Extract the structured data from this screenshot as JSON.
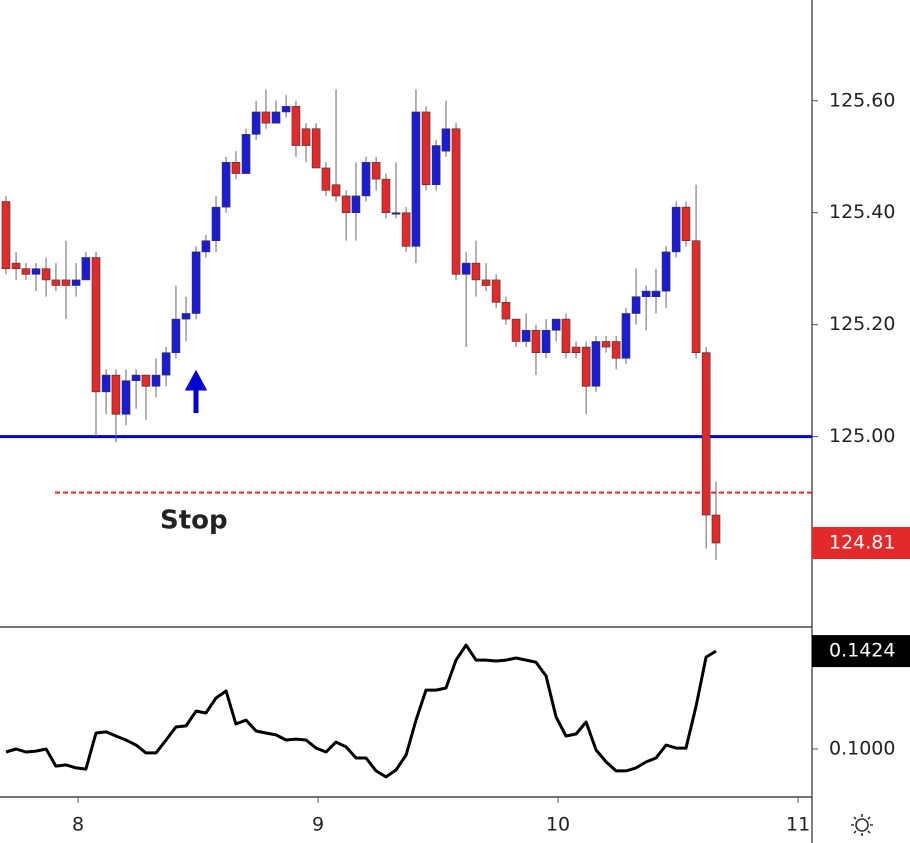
{
  "chart_data": [
    {
      "type": "candlestick",
      "x": [
        7.7,
        7.742,
        7.783,
        7.825,
        7.867,
        7.908,
        7.95,
        7.992,
        8.033,
        8.075,
        8.117,
        8.158,
        8.2,
        8.242,
        8.283,
        8.325,
        8.367,
        8.408,
        8.45,
        8.492,
        8.533,
        8.575,
        8.617,
        8.658,
        8.7,
        8.742,
        8.783,
        8.825,
        8.867,
        8.908,
        8.95,
        8.992,
        9.033,
        9.075,
        9.117,
        9.158,
        9.2,
        9.242,
        9.283,
        9.325,
        9.367,
        9.408,
        9.45,
        9.492,
        9.533,
        9.575,
        9.617,
        9.658,
        9.7,
        9.742,
        9.783,
        9.825,
        9.867,
        9.908,
        9.95,
        9.992,
        10.033,
        10.075,
        10.117,
        10.158,
        10.2,
        10.242,
        10.283,
        10.325,
        10.367,
        10.408,
        10.45,
        10.492,
        10.533,
        10.575,
        10.617,
        10.658
      ],
      "open": [
        125.42,
        125.31,
        125.3,
        125.29,
        125.3,
        125.28,
        125.28,
        125.27,
        125.28,
        125.32,
        125.08,
        125.11,
        125.04,
        125.1,
        125.11,
        125.09,
        125.11,
        125.15,
        125.21,
        125.22,
        125.33,
        125.35,
        125.41,
        125.49,
        125.47,
        125.54,
        125.58,
        125.56,
        125.58,
        125.59,
        125.55,
        125.55,
        125.48,
        125.45,
        125.43,
        125.4,
        125.43,
        125.49,
        125.46,
        125.4,
        125.4,
        125.34,
        125.58,
        125.45,
        125.51,
        125.55,
        125.29,
        125.31,
        125.28,
        125.28,
        125.24,
        125.21,
        125.17,
        125.19,
        125.15,
        125.19,
        125.21,
        125.16,
        125.16,
        125.09,
        125.17,
        125.17,
        125.14,
        125.22,
        125.25,
        125.25,
        125.26,
        125.33,
        125.41,
        125.35,
        125.15,
        124.86
      ],
      "high": [
        125.43,
        125.33,
        125.31,
        125.31,
        125.32,
        125.31,
        125.35,
        125.31,
        125.33,
        125.33,
        125.12,
        125.12,
        125.12,
        125.12,
        125.11,
        125.14,
        125.16,
        125.27,
        125.25,
        125.34,
        125.36,
        125.43,
        125.5,
        125.51,
        125.55,
        125.6,
        125.62,
        125.6,
        125.61,
        125.6,
        125.56,
        125.56,
        125.49,
        125.62,
        125.44,
        125.49,
        125.5,
        125.5,
        125.47,
        125.49,
        125.41,
        125.62,
        125.59,
        125.53,
        125.6,
        125.56,
        125.33,
        125.35,
        125.31,
        125.29,
        125.25,
        125.21,
        125.22,
        125.2,
        125.21,
        125.21,
        125.22,
        125.17,
        125.17,
        125.18,
        125.18,
        125.18,
        125.23,
        125.3,
        125.27,
        125.3,
        125.34,
        125.42,
        125.42,
        125.45,
        125.16,
        124.92
      ],
      "low": [
        125.29,
        125.28,
        125.28,
        125.26,
        125.25,
        125.26,
        125.21,
        125.25,
        125.28,
        125.0,
        125.04,
        124.99,
        125.02,
        125.05,
        125.03,
        125.07,
        125.09,
        125.14,
        125.17,
        125.21,
        125.32,
        125.33,
        125.4,
        125.46,
        125.47,
        125.53,
        125.55,
        125.56,
        125.57,
        125.5,
        125.49,
        125.48,
        125.43,
        125.42,
        125.35,
        125.35,
        125.42,
        125.44,
        125.39,
        125.39,
        125.33,
        125.31,
        125.44,
        125.44,
        125.5,
        125.28,
        125.16,
        125.25,
        125.26,
        125.23,
        125.2,
        125.16,
        125.16,
        125.11,
        125.14,
        125.17,
        125.14,
        125.14,
        125.04,
        125.08,
        125.15,
        125.12,
        125.13,
        125.2,
        125.19,
        125.22,
        125.23,
        125.32,
        125.34,
        125.14,
        124.8,
        124.78
      ],
      "close": [
        125.3,
        125.3,
        125.29,
        125.3,
        125.28,
        125.27,
        125.27,
        125.28,
        125.32,
        125.08,
        125.11,
        125.04,
        125.1,
        125.11,
        125.09,
        125.11,
        125.15,
        125.21,
        125.22,
        125.33,
        125.35,
        125.41,
        125.49,
        125.47,
        125.54,
        125.58,
        125.56,
        125.58,
        125.59,
        125.52,
        125.52,
        125.48,
        125.44,
        125.43,
        125.4,
        125.43,
        125.49,
        125.46,
        125.4,
        125.4,
        125.34,
        125.58,
        125.45,
        125.52,
        125.55,
        125.29,
        125.31,
        125.28,
        125.27,
        125.24,
        125.21,
        125.17,
        125.19,
        125.15,
        125.19,
        125.21,
        125.15,
        125.15,
        125.09,
        125.17,
        125.16,
        125.14,
        125.22,
        125.25,
        125.26,
        125.26,
        125.33,
        125.41,
        125.35,
        125.15,
        124.86,
        124.81
      ],
      "up_color": "#1c1cd4",
      "down_color": "#e32a2a",
      "xlim": [
        7.675,
        11.058
      ],
      "ylim": [
        124.66,
        125.78
      ],
      "yticks": [
        {
          "value": 125,
          "label": "125.00"
        },
        {
          "value": 125.2,
          "label": "125.20"
        },
        {
          "value": 125.4,
          "label": "125.40"
        },
        {
          "value": 125.6,
          "label": "125.60"
        }
      ],
      "grid": false,
      "hlines": [
        {
          "value": 125,
          "color": "#0000d0",
          "style": "solid"
        },
        {
          "value": 124.9,
          "color": "#e32a2a",
          "style": "dashed"
        }
      ],
      "annotation": "Stop"
    },
    {
      "type": "line",
      "x": [
        7.7,
        7.742,
        7.783,
        7.825,
        7.867,
        7.908,
        7.95,
        7.992,
        8.033,
        8.075,
        8.117,
        8.158,
        8.2,
        8.242,
        8.283,
        8.325,
        8.367,
        8.408,
        8.45,
        8.492,
        8.533,
        8.575,
        8.617,
        8.658,
        8.7,
        8.742,
        8.783,
        8.825,
        8.867,
        8.908,
        8.95,
        8.992,
        9.033,
        9.075,
        9.117,
        9.158,
        9.2,
        9.242,
        9.283,
        9.325,
        9.367,
        9.408,
        9.45,
        9.492,
        9.533,
        9.575,
        9.617,
        9.658,
        9.7,
        9.742,
        9.783,
        9.825,
        9.867,
        9.908,
        9.95,
        9.992,
        10.033,
        10.075,
        10.117,
        10.158,
        10.2,
        10.242,
        10.283,
        10.325,
        10.367,
        10.408,
        10.45,
        10.492,
        10.533,
        10.575,
        10.617,
        10.658
      ],
      "values": [
        0.0987,
        0.1,
        0.0987,
        0.0991,
        0.1,
        0.0926,
        0.0931,
        0.0918,
        0.0913,
        0.1069,
        0.1074,
        0.1056,
        0.1039,
        0.1017,
        0.0983,
        0.0983,
        0.1039,
        0.1095,
        0.11,
        0.1164,
        0.1156,
        0.1221,
        0.1251,
        0.1108,
        0.1125,
        0.1078,
        0.1069,
        0.1061,
        0.1039,
        0.1043,
        0.1039,
        0.1004,
        0.0987,
        0.103,
        0.1009,
        0.0961,
        0.0961,
        0.0905,
        0.0879,
        0.0909,
        0.0974,
        0.1125,
        0.1255,
        0.1255,
        0.1264,
        0.1385,
        0.145,
        0.1385,
        0.1385,
        0.1381,
        0.1385,
        0.1394,
        0.1385,
        0.1376,
        0.1316,
        0.1138,
        0.1056,
        0.1065,
        0.1117,
        0.0996,
        0.0944,
        0.0905,
        0.0905,
        0.0918,
        0.0944,
        0.0961,
        0.1017,
        0.1004,
        0.1004,
        0.1186,
        0.1398,
        0.1424
      ],
      "color": "#000000",
      "xlim": [
        7.675,
        11.058
      ],
      "xticks": [
        8,
        9,
        10,
        11
      ],
      "ylim": [
        0.0792,
        0.1524
      ],
      "yticks": [
        {
          "value": 0.1,
          "label": "0.1000"
        }
      ],
      "grid": false
    }
  ]
}
